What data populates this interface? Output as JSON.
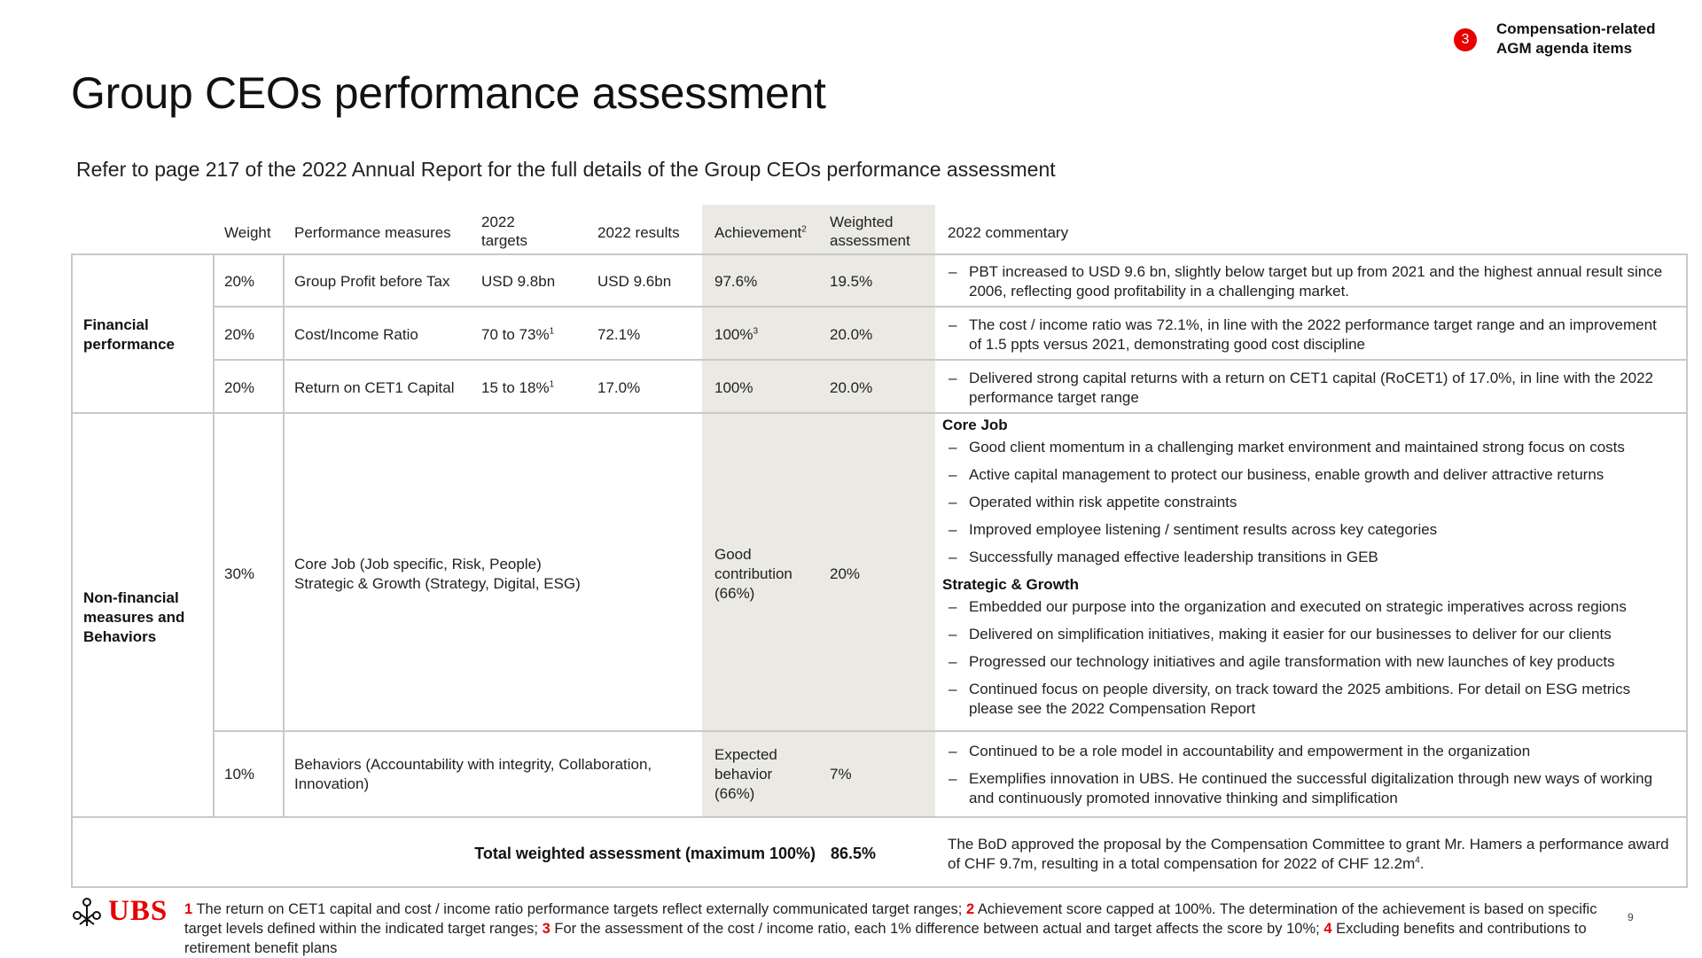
{
  "badge": {
    "number": "3",
    "line1": "Compensation-related",
    "line2": "AGM agenda items"
  },
  "title": "Group CEOs performance assessment",
  "subtitle": "Refer to page 217 of the 2022 Annual Report for the full details of the Group CEOs performance assessment",
  "table": {
    "headers": {
      "weight": "Weight",
      "measures": "Performance measures",
      "targets_l1": "2022",
      "targets_l2": "targets",
      "results": "2022 results",
      "achievement": "Achievement",
      "achievement_sup": "2",
      "weighted_l1": "Weighted",
      "weighted_l2": "assessment",
      "commentary": "2022 commentary"
    },
    "financial": {
      "label_l1": "Financial",
      "label_l2": "performance",
      "rows": [
        {
          "weight": "20%",
          "measure": "Group Profit before Tax",
          "target": "USD 9.8bn",
          "target_sup": "",
          "result": "USD 9.6bn",
          "achievement": "97.6%",
          "achievement_sup": "",
          "weighted": "19.5%",
          "commentary": "PBT increased to USD 9.6 bn, slightly below target but up from 2021 and the highest annual result since 2006, reflecting good profitability in a challenging market."
        },
        {
          "weight": "20%",
          "measure": "Cost/Income Ratio",
          "target": "70 to 73%",
          "target_sup": "1",
          "result": "72.1%",
          "achievement": "100%",
          "achievement_sup": "3",
          "weighted": "20.0%",
          "commentary": "The cost / income ratio was 72.1%, in line with the 2022 performance target range and an improvement of 1.5 ppts versus 2021, demonstrating good cost discipline"
        },
        {
          "weight": "20%",
          "measure": "Return on CET1 Capital",
          "target": "15 to 18%",
          "target_sup": "1",
          "result": "17.0%",
          "achievement": "100%",
          "achievement_sup": "",
          "weighted": "20.0%",
          "commentary": "Delivered strong capital returns with a return on CET1 capital (RoCET1) of 17.0%, in line with the 2022 performance target range"
        }
      ]
    },
    "nonfinancial": {
      "label_l1": "Non-financial",
      "label_l2": "measures and",
      "label_l3": "Behaviors",
      "core": {
        "weight": "30%",
        "measure_l1": "Core Job (Job specific, Risk, People)",
        "measure_l2": "Strategic & Growth (Strategy, Digital, ESG)",
        "achievement_l1": "Good",
        "achievement_l2": "contribution",
        "achievement_l3": "(66%)",
        "weighted": "20%",
        "core_title": "Core Job",
        "core_items": [
          "Good client momentum in a challenging market environment and maintained strong focus on costs",
          "Active capital management to protect our business, enable growth and deliver attractive returns",
          "Operated within risk appetite constraints",
          "Improved employee listening / sentiment results across key categories",
          "Successfully managed effective leadership transitions in GEB"
        ],
        "strategic_title": "Strategic & Growth",
        "strategic_items": [
          "Embedded our purpose into the organization and executed on strategic imperatives across regions",
          "Delivered on simplification initiatives, making it easier for our businesses to deliver for our clients",
          "Progressed our technology initiatives and agile transformation with new launches of key products",
          "Continued focus on people diversity, on track toward the 2025 ambitions. For detail on ESG metrics please see the 2022 Compensation Report"
        ]
      },
      "behaviors": {
        "weight": "10%",
        "measure_l1": "Behaviors (Accountability with integrity, Collaboration,",
        "measure_l2": "Innovation)",
        "achievement_l1": "Expected",
        "achievement_l2": "behavior",
        "achievement_l3": "(66%)",
        "weighted": "7%",
        "items": [
          "Continued to be a role model in accountability and empowerment in the organization",
          "Exemplifies innovation in UBS. He continued the successful digitalization through new ways of working and continuously promoted innovative thinking and simplification"
        ]
      }
    },
    "total": {
      "label": "Total weighted assessment (maximum 100%)",
      "value": "86.5%",
      "commentary": "The BoD approved the proposal by the Compensation Committee to grant Mr. Hamers a performance award of CHF 9.7m, resulting in a total compensation for 2022 of CHF 12.2m",
      "commentary_sup": "4",
      "commentary_end": "."
    }
  },
  "logo": {
    "text": "UBS",
    "brand_color": "#e60000"
  },
  "footnotes": [
    {
      "num": "1",
      "text": " The return on CET1 capital and cost / income ratio performance targets reflect externally communicated target ranges; "
    },
    {
      "num": "2",
      "text": " Achievement score capped at 100%. The determination of the achievement is based on specific target levels defined within the indicated target ranges; "
    },
    {
      "num": "3",
      "text": " For the assessment of the cost / income ratio, each 1% difference between actual and target affects the score by 10%; "
    },
    {
      "num": "4",
      "text": " Excluding benefits and contributions to retirement benefit plans"
    }
  ],
  "page_number": "9"
}
